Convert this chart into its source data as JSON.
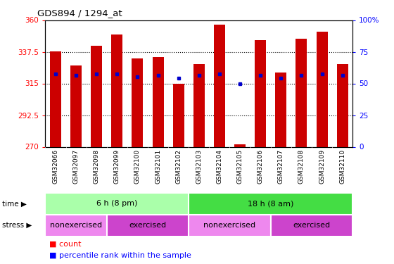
{
  "title": "GDS894 / 1294_at",
  "samples": [
    "GSM32066",
    "GSM32097",
    "GSM32098",
    "GSM32099",
    "GSM32100",
    "GSM32101",
    "GSM32102",
    "GSM32103",
    "GSM32104",
    "GSM32105",
    "GSM32106",
    "GSM32107",
    "GSM32108",
    "GSM32109",
    "GSM32110"
  ],
  "bar_values": [
    338,
    328,
    342,
    350,
    333,
    334,
    315,
    329,
    357,
    272,
    346,
    323,
    347,
    352,
    329
  ],
  "blue_dot_y": [
    322,
    321,
    322,
    322,
    320,
    321,
    319,
    321,
    322,
    315,
    321,
    319,
    321,
    322,
    321
  ],
  "bar_color": "#cc0000",
  "dot_color": "#0000cc",
  "ylim_left": [
    270,
    360
  ],
  "ylim_right": [
    0,
    100
  ],
  "yticks_left": [
    270,
    292.5,
    315,
    337.5,
    360
  ],
  "yticks_right": [
    0,
    25,
    50,
    75,
    100
  ],
  "yticklabels_left": [
    "270",
    "292.5",
    "315",
    "337.5",
    "360"
  ],
  "yticklabels_right": [
    "0",
    "25",
    "50",
    "75",
    "100%"
  ],
  "hlines": [
    292.5,
    315,
    337.5
  ],
  "time_groups": [
    {
      "label": "6 h (8 pm)",
      "start": 0,
      "end": 7,
      "color": "#aaffaa"
    },
    {
      "label": "18 h (8 am)",
      "start": 7,
      "end": 15,
      "color": "#44dd44"
    }
  ],
  "stress_groups": [
    {
      "label": "nonexercised",
      "start": 0,
      "end": 3,
      "color": "#ee88ee"
    },
    {
      "label": "exercised",
      "start": 3,
      "end": 7,
      "color": "#cc44cc"
    },
    {
      "label": "nonexercised",
      "start": 7,
      "end": 11,
      "color": "#ee88ee"
    },
    {
      "label": "exercised",
      "start": 11,
      "end": 15,
      "color": "#cc44cc"
    }
  ],
  "time_label": "time",
  "stress_label": "stress",
  "legend_items": [
    "count",
    "percentile rank within the sample"
  ],
  "plot_bg_color": "#ffffff",
  "tick_bg_color": "#dddddd"
}
